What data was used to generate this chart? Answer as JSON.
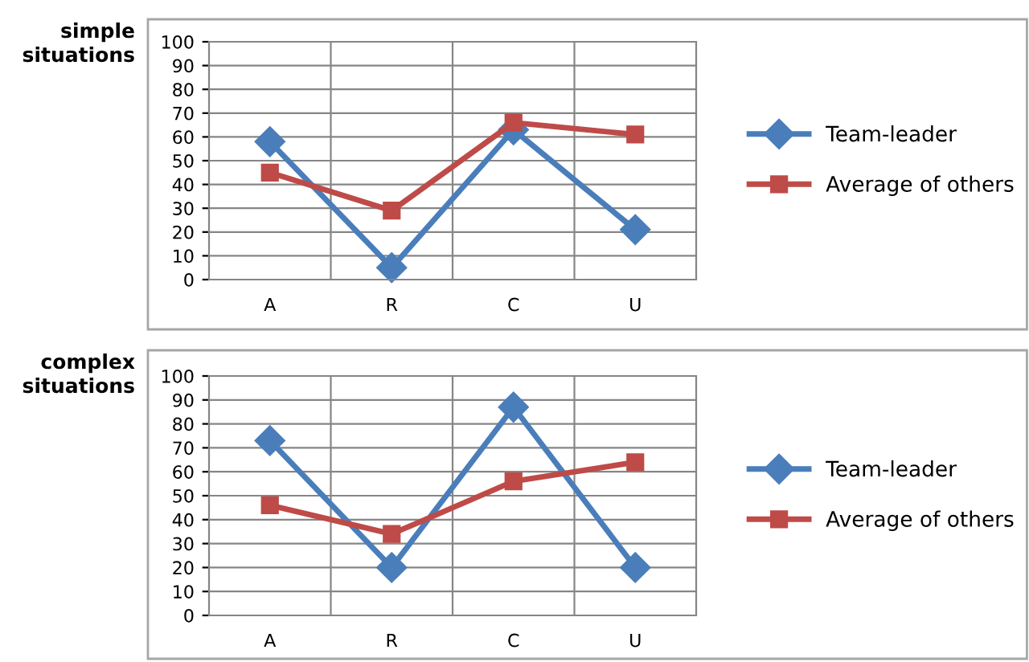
{
  "chart_data": [
    {
      "type": "line",
      "title": "simple\nsituations",
      "categories": [
        "A",
        "R",
        "C",
        "U"
      ],
      "ylim": [
        0,
        100
      ],
      "yticks": [
        0,
        10,
        20,
        30,
        40,
        50,
        60,
        70,
        80,
        90,
        100
      ],
      "grid": true,
      "legend": "right",
      "series": [
        {
          "name": "Team-leader",
          "color": "#4a7ebb",
          "marker": "diamond",
          "values": [
            58,
            5,
            63,
            21
          ]
        },
        {
          "name": "Average of others",
          "color": "#be4b48",
          "marker": "square",
          "values": [
            45,
            29,
            66,
            61
          ]
        }
      ]
    },
    {
      "type": "line",
      "title": "complex\nsituations",
      "categories": [
        "A",
        "R",
        "C",
        "U"
      ],
      "ylim": [
        0,
        100
      ],
      "yticks": [
        0,
        10,
        20,
        30,
        40,
        50,
        60,
        70,
        80,
        90,
        100
      ],
      "grid": true,
      "legend": "right",
      "series": [
        {
          "name": "Team-leader",
          "color": "#4a7ebb",
          "marker": "diamond",
          "values": [
            73,
            20,
            87,
            20
          ]
        },
        {
          "name": "Average of others",
          "color": "#be4b48",
          "marker": "square",
          "values": [
            46,
            34,
            56,
            64
          ]
        }
      ]
    }
  ]
}
